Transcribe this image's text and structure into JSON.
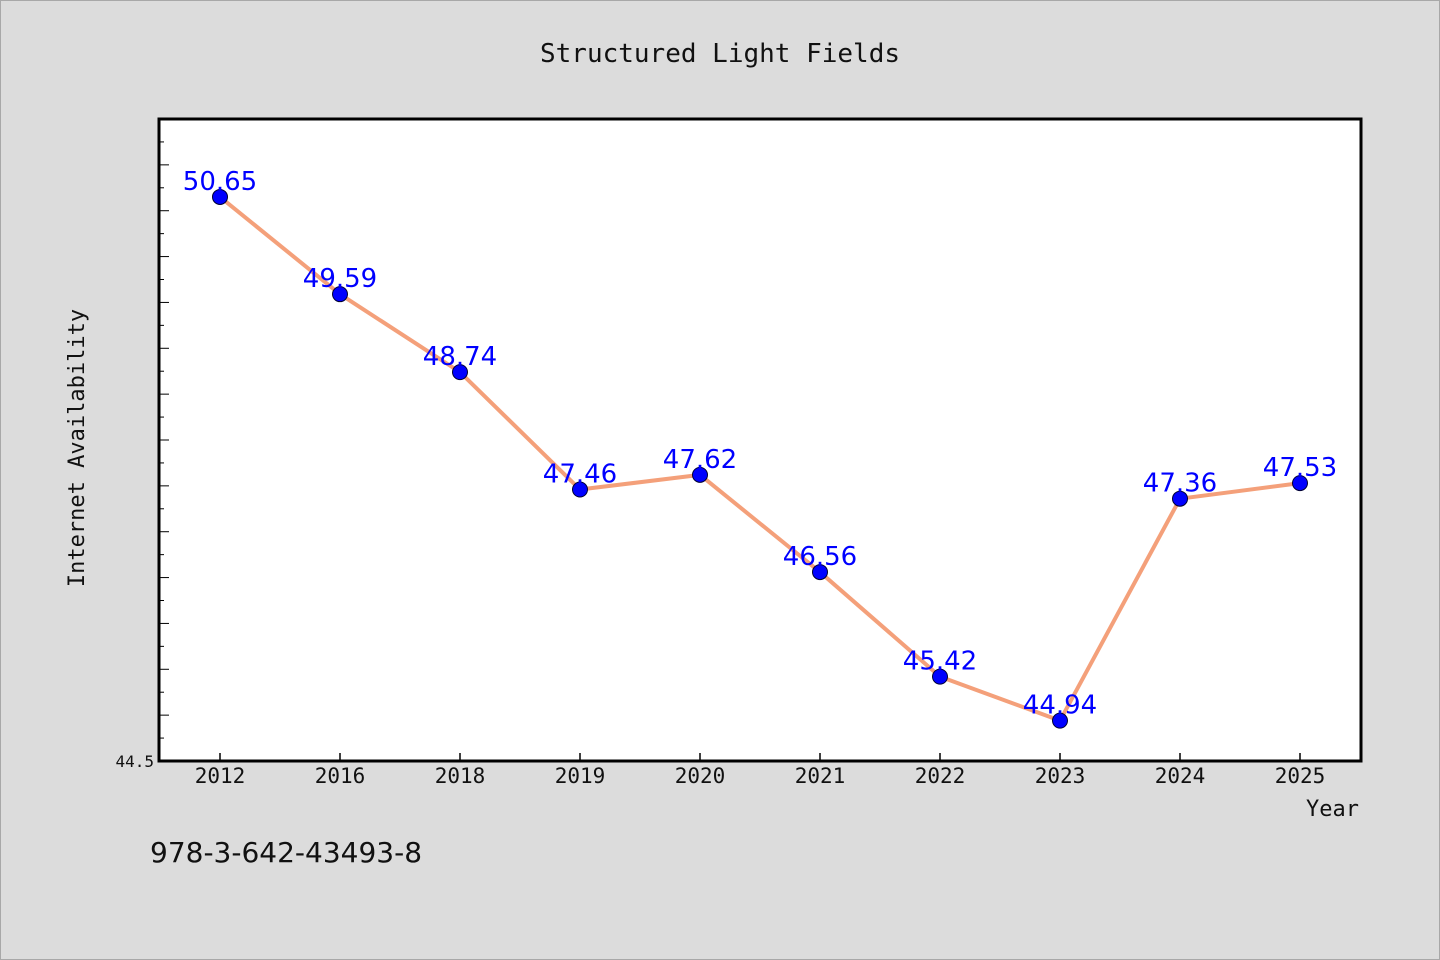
{
  "chart_data": {
    "type": "line",
    "title": "Structured Light Fields",
    "xlabel": "Year",
    "ylabel": "Internet Availability",
    "categories": [
      "2012",
      "2016",
      "2018",
      "2019",
      "2020",
      "2021",
      "2022",
      "2023",
      "2024",
      "2025"
    ],
    "series": [
      {
        "values": [
          50.65,
          49.59,
          48.74,
          47.46,
          47.62,
          46.56,
          45.42,
          44.94,
          47.36,
          47.53
        ],
        "data_labels": [
          "50.65",
          "49.59",
          "48.74",
          "47.46",
          "47.62",
          "46.56",
          "45.42",
          "44.94",
          "47.36",
          "47.53"
        ]
      }
    ],
    "ylim": [
      44.5,
      51.5
    ],
    "ymin_label": "44.5",
    "grid": false,
    "line_color": "#f4a07a",
    "marker_color": "#0000ff",
    "label_color": "#0000ff"
  },
  "footer": {
    "code": "978-3-642-43493-8"
  }
}
